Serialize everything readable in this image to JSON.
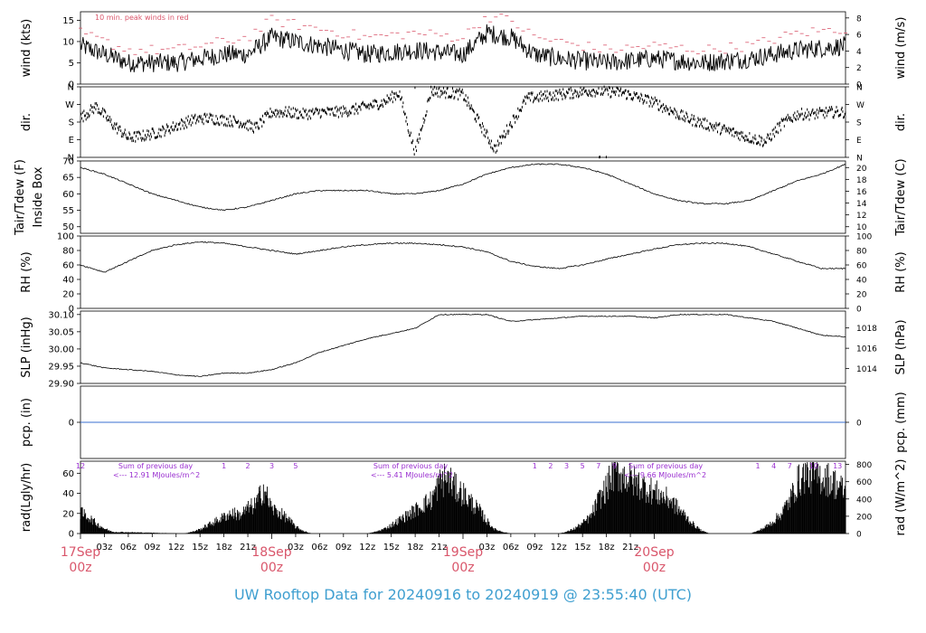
{
  "title": "UW Rooftop Data for 20240916  to  20240919 @ 23:55:40  (UTC)",
  "colors": {
    "accent_red": "#d9566b",
    "accent_purple": "#9a2fd0",
    "zero_line": "#3a6fd0",
    "title_blue": "#3f9fd0",
    "trace": "#000000"
  },
  "chart_data": [
    {
      "type": "line",
      "left_label": "wind (kts)",
      "right_label": "wind (m/s)",
      "annotation": "10 min. peak winds in red",
      "ylim": [
        0,
        17
      ],
      "yticks": [
        0,
        5,
        10,
        15
      ],
      "right_ticks": [
        {
          "label": "0",
          "v": 0
        },
        {
          "label": "2",
          "v": 3.89
        },
        {
          "label": "4",
          "v": 7.78
        },
        {
          "label": "6",
          "v": 11.66
        },
        {
          "label": "8",
          "v": 15.55
        }
      ],
      "series": [
        {
          "role": "mean",
          "hours": [
            0,
            6,
            12,
            18,
            21,
            24,
            30,
            36,
            42,
            48,
            51,
            54,
            57,
            60,
            66,
            72,
            78,
            84,
            90,
            96
          ],
          "values": [
            9,
            5,
            5,
            7,
            7,
            11,
            9,
            7,
            8,
            7,
            12,
            11,
            7,
            6,
            5,
            6,
            5,
            6,
            8,
            9
          ]
        },
        {
          "role": "peak",
          "hours": [
            0,
            6,
            12,
            18,
            21,
            24,
            30,
            36,
            42,
            48,
            51,
            54,
            57,
            60,
            66,
            72,
            78,
            84,
            90,
            96
          ],
          "values": [
            12,
            8,
            8,
            10,
            11,
            15,
            13,
            11,
            12,
            11,
            16,
            15,
            11,
            10,
            8,
            9,
            8,
            9,
            12,
            13
          ]
        }
      ]
    },
    {
      "type": "scatter",
      "left_label": "dir.",
      "right_label": "dir.",
      "ylim": [
        0,
        360
      ],
      "ytick_labels": [
        "N",
        "E",
        "S",
        "W",
        "N"
      ],
      "ytick_values": [
        0,
        90,
        180,
        270,
        360
      ],
      "series": [
        {
          "name": "direction",
          "hours": [
            0,
            2,
            4,
            6,
            8,
            10,
            12,
            14,
            16,
            18,
            20,
            22,
            24,
            26,
            28,
            30,
            32,
            34,
            36,
            38,
            40,
            42,
            44,
            48,
            52,
            56,
            60,
            64,
            68,
            72,
            76,
            80,
            84,
            86,
            88,
            90,
            92,
            94,
            96
          ],
          "values": [
            200,
            260,
            170,
            100,
            110,
            130,
            160,
            190,
            200,
            190,
            180,
            150,
            230,
            230,
            220,
            230,
            230,
            240,
            260,
            280,
            330,
            20,
            340,
            320,
            40,
            300,
            320,
            340,
            330,
            280,
            200,
            150,
            100,
            80,
            170,
            220,
            220,
            230,
            230
          ]
        }
      ]
    },
    {
      "type": "line",
      "left_label": "Tair/Tdew (F)\nInside Box",
      "right_label": "Tair/Tdew (C)",
      "ylim": [
        48,
        70
      ],
      "yticks": [
        50,
        55,
        60,
        65,
        70
      ],
      "right_ticks": [
        {
          "label": "10",
          "v": 50
        },
        {
          "label": "12",
          "v": 53.6
        },
        {
          "label": "14",
          "v": 57.2
        },
        {
          "label": "16",
          "v": 60.8
        },
        {
          "label": "18",
          "v": 64.4
        },
        {
          "label": "20",
          "v": 68
        }
      ],
      "series": [
        {
          "name": "Tair",
          "hours": [
            0,
            3,
            6,
            9,
            12,
            15,
            18,
            21,
            24,
            27,
            30,
            33,
            36,
            39,
            42,
            45,
            48,
            51,
            54,
            57,
            60,
            63,
            66,
            69,
            72,
            75,
            78,
            81,
            84,
            87,
            90,
            93,
            96
          ],
          "values": [
            68,
            66,
            63,
            60,
            58,
            56,
            55,
            56,
            58,
            60,
            61,
            61,
            61,
            60,
            60,
            61,
            63,
            66,
            68,
            69,
            69,
            68,
            66,
            63,
            60,
            58,
            57,
            57,
            58,
            61,
            64,
            66,
            69
          ]
        }
      ]
    },
    {
      "type": "line",
      "left_label": "RH (%)",
      "right_label": "RH (%)",
      "ylim": [
        0,
        100
      ],
      "yticks": [
        0,
        20,
        40,
        60,
        80,
        100
      ],
      "right_ticks": [
        {
          "label": "0",
          "v": 0
        },
        {
          "label": "20",
          "v": 20
        },
        {
          "label": "40",
          "v": 40
        },
        {
          "label": "60",
          "v": 60
        },
        {
          "label": "80",
          "v": 80
        },
        {
          "label": "100",
          "v": 100
        }
      ],
      "series": [
        {
          "name": "RH",
          "hours": [
            0,
            3,
            6,
            9,
            12,
            15,
            18,
            21,
            24,
            27,
            30,
            33,
            36,
            39,
            42,
            45,
            48,
            51,
            54,
            57,
            60,
            63,
            66,
            69,
            72,
            75,
            78,
            81,
            84,
            87,
            90,
            93,
            96
          ],
          "values": [
            60,
            50,
            65,
            80,
            88,
            92,
            90,
            85,
            80,
            75,
            80,
            85,
            88,
            90,
            90,
            88,
            85,
            78,
            65,
            58,
            55,
            60,
            68,
            75,
            82,
            88,
            90,
            90,
            85,
            75,
            65,
            55,
            55
          ]
        }
      ]
    },
    {
      "type": "line",
      "left_label": "SLP (inHg)",
      "right_label": "SLP (hPa)",
      "ylim": [
        29.9,
        30.11
      ],
      "yticks": [
        29.9,
        29.95,
        30.0,
        30.05,
        30.1
      ],
      "ytick_labels": [
        "29.90",
        "29.95",
        "30.00",
        "30.05",
        "30.10"
      ],
      "right_ticks": [
        {
          "label": "1014",
          "v": 29.943
        },
        {
          "label": "1016",
          "v": 30.002
        },
        {
          "label": "1018",
          "v": 30.061
        }
      ],
      "series": [
        {
          "name": "SLP",
          "hours": [
            0,
            3,
            6,
            9,
            12,
            15,
            18,
            21,
            24,
            27,
            30,
            33,
            36,
            39,
            42,
            45,
            48,
            51,
            54,
            57,
            60,
            63,
            66,
            69,
            72,
            75,
            78,
            81,
            84,
            87,
            90,
            93,
            96
          ],
          "values": [
            29.96,
            29.945,
            29.94,
            29.935,
            29.925,
            29.92,
            29.93,
            29.93,
            29.94,
            29.96,
            29.99,
            30.01,
            30.03,
            30.045,
            30.06,
            30.1,
            30.1,
            30.1,
            30.08,
            30.085,
            30.09,
            30.095,
            30.095,
            30.095,
            30.09,
            30.1,
            30.1,
            30.1,
            30.09,
            30.08,
            30.06,
            30.04,
            30.035
          ]
        }
      ]
    },
    {
      "type": "line",
      "left_label": "pcp. (in)",
      "right_label": "pcp. (mm)",
      "ylim": [
        -1,
        1
      ],
      "yticks": [
        0
      ],
      "right_ticks": [
        {
          "label": "0",
          "v": 0
        }
      ],
      "series": [
        {
          "name": "pcp",
          "hours": [
            0,
            96
          ],
          "values": [
            0,
            0
          ]
        }
      ]
    },
    {
      "type": "bar",
      "left_label": "rad(Lgly/hr)",
      "right_label": "rad (W/m^2)",
      "ylim": [
        0,
        72
      ],
      "yticks": [
        0,
        20,
        40,
        60
      ],
      "right_ticks": [
        {
          "label": "0",
          "v": 0
        },
        {
          "label": "200",
          "v": 17.2
        },
        {
          "label": "400",
          "v": 34.4
        },
        {
          "label": "600",
          "v": 51.6
        },
        {
          "label": "800",
          "v": 68.8
        }
      ],
      "series": [
        {
          "name": "radiation",
          "hours": [
            0,
            1,
            2,
            3,
            4,
            13,
            14,
            15,
            16,
            17,
            18,
            19,
            20,
            21,
            22,
            23,
            24,
            25,
            26,
            27,
            28,
            29,
            30,
            36,
            37,
            38,
            39,
            40,
            41,
            42,
            43,
            44,
            45,
            46,
            47,
            48,
            49,
            50,
            51,
            52,
            53,
            54,
            60,
            61,
            62,
            63,
            64,
            65,
            66,
            67,
            68,
            69,
            70,
            71,
            72,
            73,
            74,
            75,
            76,
            77,
            78,
            79,
            80,
            84,
            85,
            86,
            87,
            88,
            89,
            90,
            91,
            92,
            93,
            94,
            95,
            96
          ],
          "values": [
            25,
            20,
            12,
            6,
            2,
            0,
            2,
            5,
            10,
            15,
            20,
            25,
            22,
            30,
            35,
            55,
            30,
            25,
            18,
            8,
            3,
            0,
            0,
            0,
            2,
            5,
            10,
            16,
            22,
            28,
            35,
            40,
            60,
            68,
            55,
            48,
            38,
            28,
            15,
            5,
            2,
            0,
            0,
            2,
            6,
            12,
            20,
            40,
            55,
            75,
            70,
            65,
            60,
            55,
            50,
            45,
            40,
            30,
            20,
            10,
            3,
            0,
            0,
            0,
            3,
            8,
            15,
            25,
            40,
            62,
            72,
            70,
            68,
            65,
            58,
            50
          ]
        }
      ],
      "day_summary_labels": [
        {
          "caption": "Sum of previous day",
          "value": "<--- 12.91 MJoules/m^2"
        },
        {
          "caption": "Sum of previous day",
          "value": "<--- 5.41 MJoules/m^2"
        },
        {
          "caption": "Sum of previous day",
          "value": "<--- 9.66 MJoules/m^2"
        }
      ],
      "hour_markers": [
        {
          "hour": 0,
          "label": "12"
        },
        {
          "hour": 18,
          "label": "1"
        },
        {
          "hour": 21,
          "label": "2"
        },
        {
          "hour": 24,
          "label": "3"
        },
        {
          "hour": 27,
          "label": "5"
        },
        {
          "hour": 57,
          "label": "1"
        },
        {
          "hour": 59,
          "label": "2"
        },
        {
          "hour": 61,
          "label": "3"
        },
        {
          "hour": 63,
          "label": "5"
        },
        {
          "hour": 65,
          "label": "7"
        },
        {
          "hour": 67,
          "label": "9"
        },
        {
          "hour": 85,
          "label": "1"
        },
        {
          "hour": 87,
          "label": "4"
        },
        {
          "hour": 89,
          "label": "7"
        },
        {
          "hour": 92,
          "label": "10"
        },
        {
          "hour": 95,
          "label": "13"
        }
      ]
    }
  ],
  "x_axis": {
    "hour_ticks": [
      "03z",
      "06z",
      "09z",
      "12z",
      "15z",
      "18z",
      "21z",
      "03z",
      "06z",
      "09z",
      "12z",
      "15z",
      "18z",
      "21z",
      "03z",
      "06z",
      "09z",
      "12z",
      "15z",
      "18z",
      "21z"
    ],
    "hour_tick_hours": [
      3,
      6,
      9,
      12,
      15,
      18,
      21,
      27,
      30,
      33,
      36,
      39,
      42,
      45,
      51,
      54,
      57,
      60,
      63,
      66,
      69
    ],
    "day_labels": [
      {
        "date": "17Sep",
        "time": "00z",
        "hour": 0
      },
      {
        "date": "18Sep",
        "time": "00z",
        "hour": 24
      },
      {
        "date": "19Sep",
        "time": "00z",
        "hour": 48
      },
      {
        "date": "20Sep",
        "time": "00z",
        "hour": 72
      }
    ]
  }
}
